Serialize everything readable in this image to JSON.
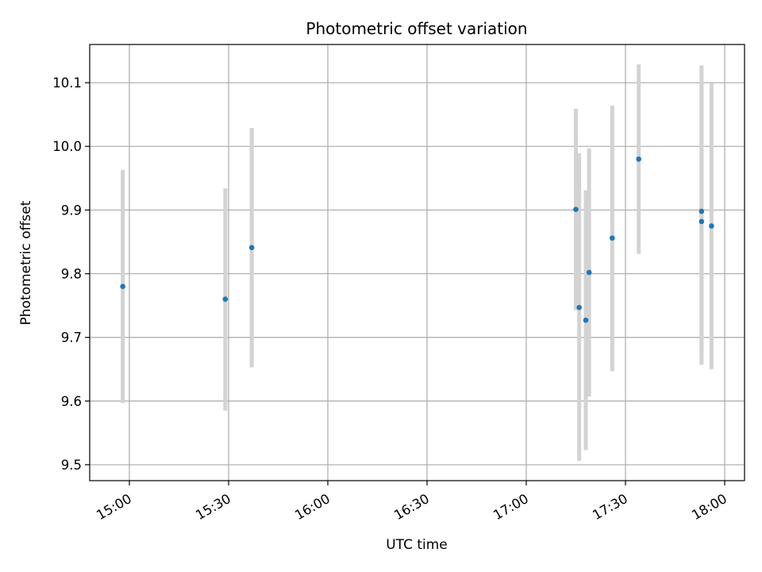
{
  "chart_data": {
    "type": "scatter",
    "title": "Photometric offset variation",
    "xlabel": "UTC time",
    "ylabel": "Photometric offset",
    "x_axis_type": "time",
    "xlim": [
      "14:48",
      "18:06"
    ],
    "ylim": [
      9.475,
      10.16
    ],
    "x_ticks": [
      "15:00",
      "15:30",
      "16:00",
      "16:30",
      "17:00",
      "17:30",
      "18:00"
    ],
    "y_ticks": [
      "9.5",
      "9.6",
      "9.7",
      "9.8",
      "9.9",
      "10.0",
      "10.1"
    ],
    "grid": true,
    "point_color": "#1f77b4",
    "errorbar_color": "#d3d3d3",
    "points": [
      {
        "x": "14:58",
        "y": 9.78,
        "ylow": 9.597,
        "yhigh": 9.963
      },
      {
        "x": "15:29",
        "y": 9.76,
        "ylow": 9.585,
        "yhigh": 9.934
      },
      {
        "x": "15:37",
        "y": 9.841,
        "ylow": 9.653,
        "yhigh": 10.029
      },
      {
        "x": "17:15",
        "y": 9.901,
        "ylow": 9.743,
        "yhigh": 10.059
      },
      {
        "x": "17:16",
        "y": 9.747,
        "ylow": 9.506,
        "yhigh": 9.989
      },
      {
        "x": "17:18",
        "y": 9.727,
        "ylow": 9.523,
        "yhigh": 9.931
      },
      {
        "x": "17:19",
        "y": 9.802,
        "ylow": 9.607,
        "yhigh": 9.997
      },
      {
        "x": "17:26",
        "y": 9.856,
        "ylow": 9.647,
        "yhigh": 10.064
      },
      {
        "x": "17:34",
        "y": 9.98,
        "ylow": 9.831,
        "yhigh": 10.129
      },
      {
        "x": "17:53",
        "y": 9.898,
        "ylow": 9.669,
        "yhigh": 10.127
      },
      {
        "x": "17:53",
        "y": 9.882,
        "ylow": 9.657,
        "yhigh": 10.108
      },
      {
        "x": "17:56",
        "y": 9.875,
        "ylow": 9.65,
        "yhigh": 10.099
      }
    ]
  }
}
